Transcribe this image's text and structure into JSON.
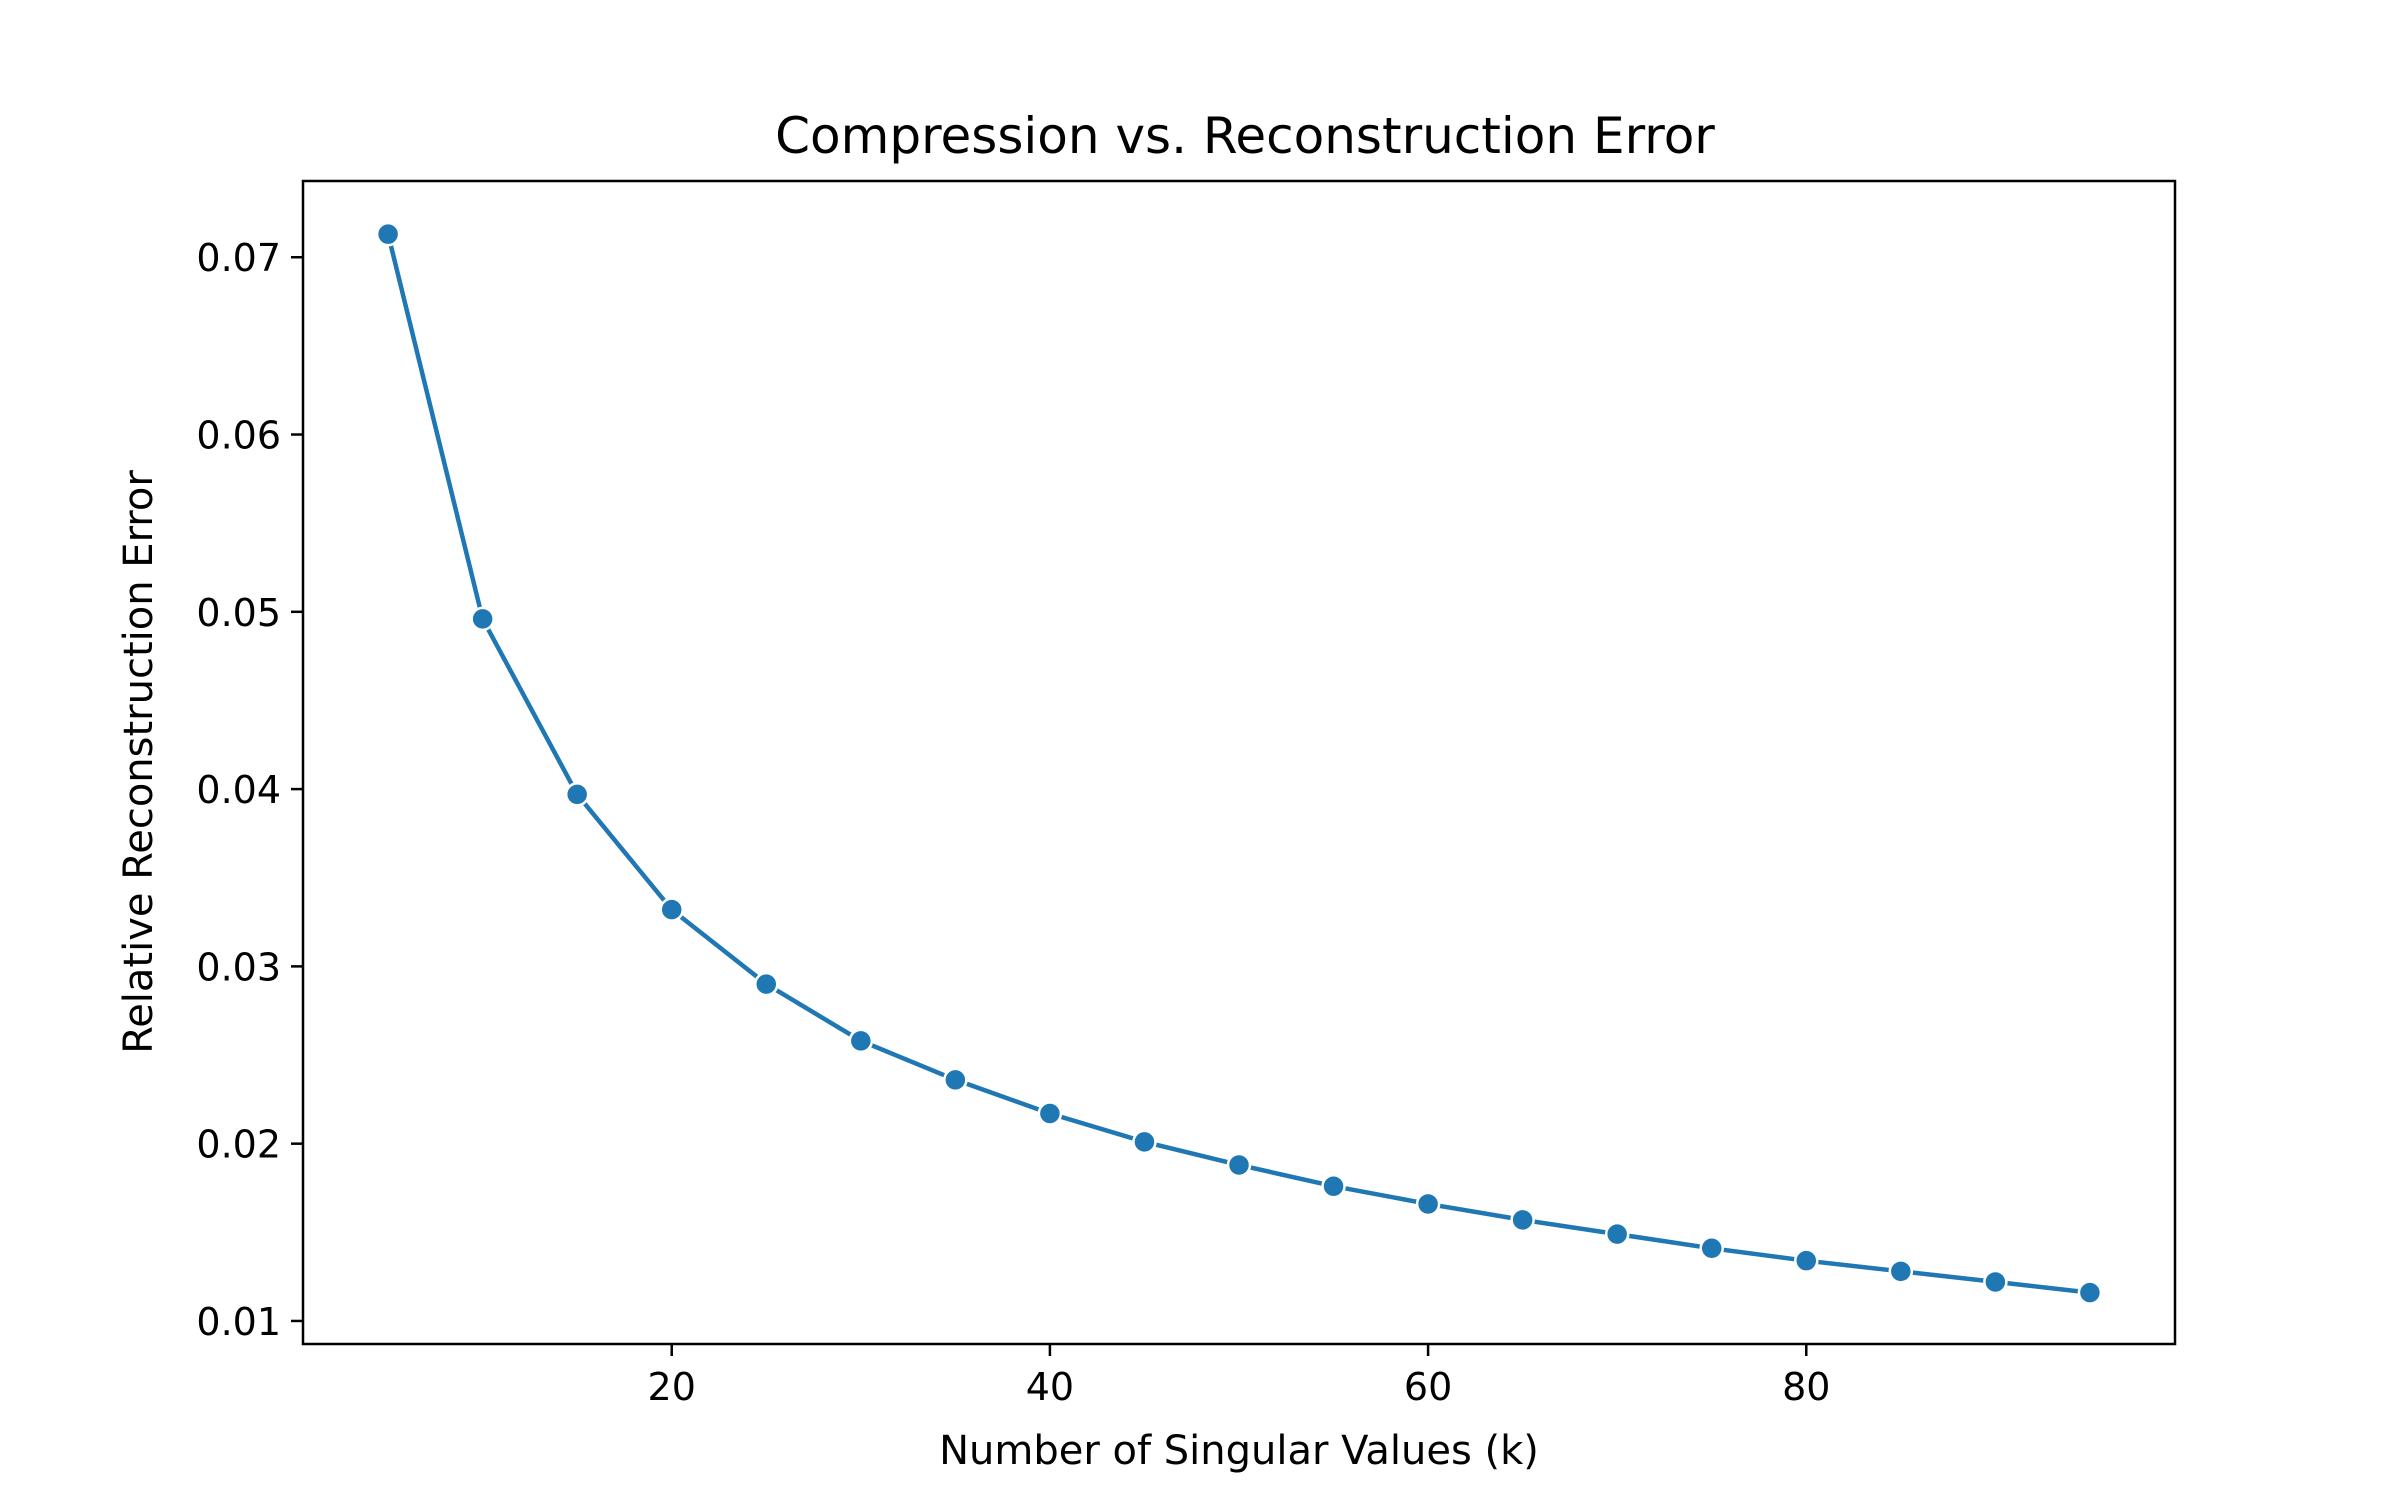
{
  "chart_data": {
    "type": "line",
    "title": "Compression vs. Reconstruction Error",
    "xlabel": "Number of Singular Values (k)",
    "ylabel": "Relative Reconstruction Error",
    "xlim": [
      0.5,
      99.5
    ],
    "ylim": [
      0.0087,
      0.0743
    ],
    "xticks": [
      20,
      40,
      60,
      80
    ],
    "xtick_labels": [
      "20",
      "40",
      "60",
      "80"
    ],
    "yticks": [
      0.01,
      0.02,
      0.03,
      0.04,
      0.05,
      0.06,
      0.07
    ],
    "ytick_labels": [
      "0.01",
      "0.02",
      "0.03",
      "0.04",
      "0.05",
      "0.06",
      "0.07"
    ],
    "grid": false,
    "legend": "none",
    "marker": "circle",
    "series": [
      {
        "color": "#1f77b4",
        "x": [
          5,
          10,
          15,
          20,
          25,
          30,
          35,
          40,
          45,
          50,
          55,
          60,
          65,
          70,
          75,
          80,
          85,
          90,
          95
        ],
        "y": [
          0.0713,
          0.0496,
          0.0397,
          0.0332,
          0.029,
          0.0258,
          0.0236,
          0.0217,
          0.0201,
          0.0188,
          0.0176,
          0.0166,
          0.0157,
          0.0149,
          0.0141,
          0.0134,
          0.0128,
          0.0122,
          0.0116
        ]
      }
    ]
  }
}
